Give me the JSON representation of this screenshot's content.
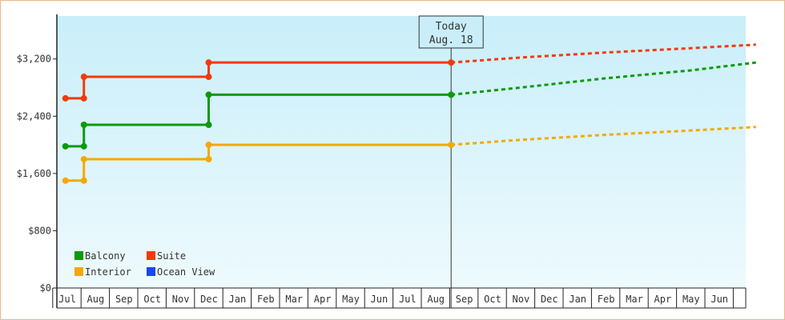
{
  "chart_data": {
    "type": "line",
    "y_ticks": [
      0,
      800,
      1600,
      2400,
      3200
    ],
    "y_tick_labels": [
      "$0",
      "$800",
      "$1,600",
      "$2,400",
      "$3,200"
    ],
    "ylim": [
      0,
      3800
    ],
    "x_months": [
      "Jul",
      "Aug",
      "Sep",
      "Oct",
      "Nov",
      "Dec",
      "Jan",
      "Feb",
      "Mar",
      "Apr",
      "May",
      "Jun",
      "Jul",
      "Aug",
      "Sep",
      "Oct",
      "Nov",
      "Dec",
      "Jan",
      "Feb",
      "Mar",
      "Apr",
      "May",
      "Jun"
    ],
    "today": {
      "label": "Today",
      "date": "Aug. 18",
      "month_index": 13.55
    },
    "legend": [
      {
        "name": "Balcony",
        "color": "#0c9a0c"
      },
      {
        "name": "Suite",
        "color": "#f23a0a"
      },
      {
        "name": "Interior",
        "color": "#f5a800"
      },
      {
        "name": "Ocean View",
        "color": "#1848e8"
      }
    ],
    "series": [
      {
        "name": "Suite",
        "color": "#f23a0a",
        "history": [
          [
            -0.05,
            2650
          ],
          [
            0.6,
            2650
          ],
          [
            0.6,
            2950
          ],
          [
            5.0,
            2950
          ],
          [
            5.0,
            3150
          ],
          [
            13.55,
            3150
          ]
        ],
        "forecast": [
          [
            13.55,
            3150
          ],
          [
            16,
            3220
          ],
          [
            19,
            3290
          ],
          [
            22,
            3350
          ],
          [
            24.3,
            3400
          ]
        ]
      },
      {
        "name": "Balcony",
        "color": "#0c9a0c",
        "history": [
          [
            -0.05,
            1980
          ],
          [
            0.6,
            1980
          ],
          [
            0.6,
            2280
          ],
          [
            5.0,
            2280
          ],
          [
            5.0,
            2700
          ],
          [
            13.55,
            2700
          ]
        ],
        "forecast": [
          [
            13.55,
            2700
          ],
          [
            16,
            2800
          ],
          [
            19,
            2930
          ],
          [
            22,
            3040
          ],
          [
            24.3,
            3150
          ]
        ]
      },
      {
        "name": "Interior",
        "color": "#f5a800",
        "history": [
          [
            -0.05,
            1500
          ],
          [
            0.6,
            1500
          ],
          [
            0.6,
            1800
          ],
          [
            5.0,
            1800
          ],
          [
            5.0,
            2000
          ],
          [
            13.55,
            2000
          ]
        ],
        "forecast": [
          [
            13.55,
            2000
          ],
          [
            16,
            2070
          ],
          [
            19,
            2140
          ],
          [
            22,
            2200
          ],
          [
            24.3,
            2250
          ]
        ]
      }
    ],
    "markers": {
      "Suite": [
        [
          -0.05,
          2650
        ],
        [
          0.6,
          2650
        ],
        [
          0.6,
          2950
        ],
        [
          5.0,
          2950
        ],
        [
          5.0,
          3150
        ],
        [
          13.55,
          3150
        ]
      ],
      "Balcony": [
        [
          -0.05,
          1980
        ],
        [
          0.6,
          1980
        ],
        [
          0.6,
          2280
        ],
        [
          5.0,
          2280
        ],
        [
          5.0,
          2700
        ],
        [
          13.55,
          2700
        ]
      ],
      "Interior": [
        [
          -0.05,
          1500
        ],
        [
          0.6,
          1500
        ],
        [
          0.6,
          1800
        ],
        [
          5.0,
          1800
        ],
        [
          5.0,
          2000
        ],
        [
          13.55,
          2000
        ]
      ]
    }
  }
}
